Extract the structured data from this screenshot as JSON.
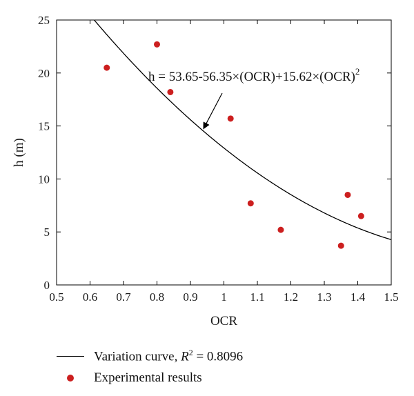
{
  "chart_data": {
    "type": "scatter",
    "xlabel": "OCR",
    "ylabel": "h (m)",
    "xlim": [
      0.5,
      1.5
    ],
    "ylim": [
      0,
      25
    ],
    "x_ticks": [
      "0.5",
      "0.6",
      "0.7",
      "0.8",
      "0.9",
      "1",
      "1.1",
      "1.2",
      "1.3",
      "1.4",
      "1.5"
    ],
    "y_ticks": [
      "0",
      "5",
      "10",
      "15",
      "20",
      "25"
    ],
    "grid": false,
    "legend_position": "bottom",
    "series": [
      {
        "name": "Variation curve, R² = 0.8096",
        "type": "line",
        "equation": {
          "a": 53.65,
          "b": -56.35,
          "c": 15.62
        },
        "color": "#000000"
      },
      {
        "name": "Experimental results",
        "type": "scatter",
        "color": "#cc1f1f",
        "x": [
          0.65,
          0.8,
          0.84,
          1.02,
          1.08,
          1.17,
          1.35,
          1.37,
          1.41
        ],
        "y": [
          20.5,
          22.7,
          18.2,
          15.7,
          7.7,
          5.2,
          3.7,
          8.5,
          6.5
        ]
      }
    ],
    "annotation": {
      "text_main": "h = 53.65-56.35×(OCR)+15.62×(OCR)",
      "text_sup": "2",
      "arrow_to": {
        "x": 0.94,
        "y": 14.8
      }
    }
  },
  "legend": {
    "line_label_prefix": "Variation curve, ",
    "line_label_r": "R",
    "line_label_sup": "2",
    "line_label_suffix": " = 0.8096",
    "scatter_label": "Experimental results"
  }
}
